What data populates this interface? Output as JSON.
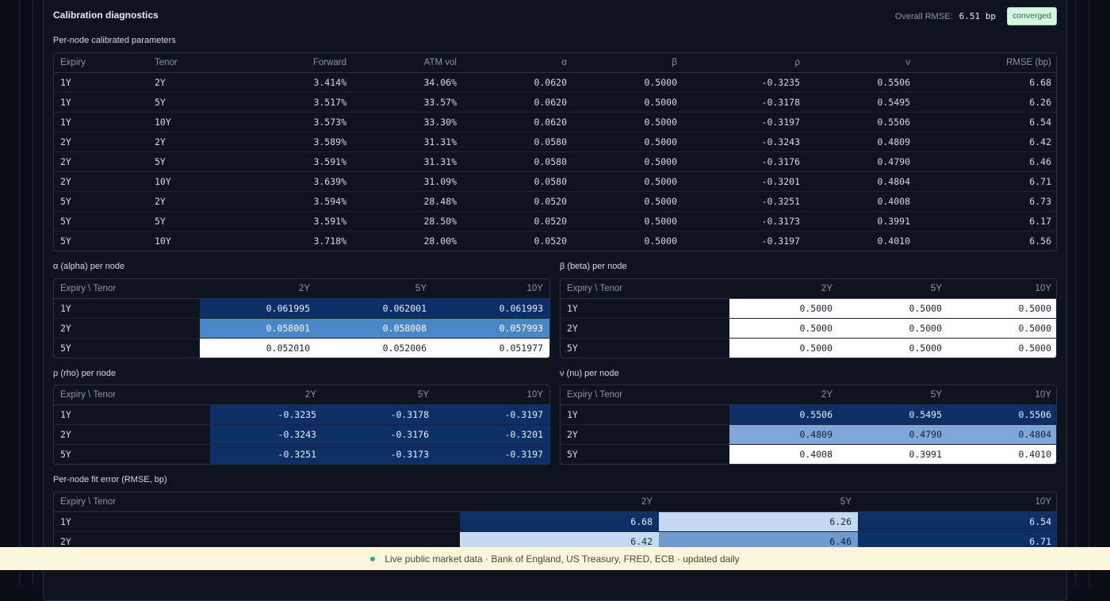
{
  "card": {
    "title": "Calibration diagnostics",
    "overall_rmse_label": "Overall RMSE:",
    "overall_rmse_value": "6.51 bp",
    "status_badge": "converged"
  },
  "params_table": {
    "label": "Per-node calibrated parameters",
    "headers": [
      "Expiry",
      "Tenor",
      "Forward",
      "ATM vol",
      "α",
      "β",
      "ρ",
      "ν",
      "RMSE (bp)"
    ],
    "rows": [
      [
        "1Y",
        "2Y",
        "3.414%",
        "34.06%",
        "0.0620",
        "0.5000",
        "-0.3235",
        "0.5506",
        "6.68"
      ],
      [
        "1Y",
        "5Y",
        "3.517%",
        "33.57%",
        "0.0620",
        "0.5000",
        "-0.3178",
        "0.5495",
        "6.26"
      ],
      [
        "1Y",
        "10Y",
        "3.573%",
        "33.30%",
        "0.0620",
        "0.5000",
        "-0.3197",
        "0.5506",
        "6.54"
      ],
      [
        "2Y",
        "2Y",
        "3.589%",
        "31.31%",
        "0.0580",
        "0.5000",
        "-0.3243",
        "0.4809",
        "6.42"
      ],
      [
        "2Y",
        "5Y",
        "3.591%",
        "31.31%",
        "0.0580",
        "0.5000",
        "-0.3176",
        "0.4790",
        "6.46"
      ],
      [
        "2Y",
        "10Y",
        "3.639%",
        "31.09%",
        "0.0580",
        "0.5000",
        "-0.3201",
        "0.4804",
        "6.71"
      ],
      [
        "5Y",
        "2Y",
        "3.594%",
        "28.48%",
        "0.0520",
        "0.5000",
        "-0.3251",
        "0.4008",
        "6.73"
      ],
      [
        "5Y",
        "5Y",
        "3.591%",
        "28.50%",
        "0.0520",
        "0.5000",
        "-0.3173",
        "0.3991",
        "6.17"
      ],
      [
        "5Y",
        "10Y",
        "3.718%",
        "28.00%",
        "0.0520",
        "0.5000",
        "-0.3197",
        "0.4010",
        "6.56"
      ]
    ]
  },
  "alpha_grid": {
    "label": "α (alpha) per node",
    "corner": "Expiry \\ Tenor",
    "cols": [
      "2Y",
      "5Y",
      "10Y"
    ],
    "rows": [
      {
        "expiry": "1Y",
        "values": [
          "0.061995",
          "0.062001",
          "0.061993"
        ]
      },
      {
        "expiry": "2Y",
        "values": [
          "0.058001",
          "0.058008",
          "0.057993"
        ]
      },
      {
        "expiry": "5Y",
        "values": [
          "0.052010",
          "0.052006",
          "0.051977"
        ]
      }
    ]
  },
  "beta_grid": {
    "label": "β (beta) per node",
    "corner": "Expiry \\ Tenor",
    "cols": [
      "2Y",
      "5Y",
      "10Y"
    ],
    "rows": [
      {
        "expiry": "1Y",
        "values": [
          "0.5000",
          "0.5000",
          "0.5000"
        ]
      },
      {
        "expiry": "2Y",
        "values": [
          "0.5000",
          "0.5000",
          "0.5000"
        ]
      },
      {
        "expiry": "5Y",
        "values": [
          "0.5000",
          "0.5000",
          "0.5000"
        ]
      }
    ]
  },
  "rho_grid": {
    "label": "ρ (rho) per node",
    "corner": "Expiry \\ Tenor",
    "cols": [
      "2Y",
      "5Y",
      "10Y"
    ],
    "rows": [
      {
        "expiry": "1Y",
        "values": [
          "-0.3235",
          "-0.3178",
          "-0.3197"
        ]
      },
      {
        "expiry": "2Y",
        "values": [
          "-0.3243",
          "-0.3176",
          "-0.3201"
        ]
      },
      {
        "expiry": "5Y",
        "values": [
          "-0.3251",
          "-0.3173",
          "-0.3197"
        ]
      }
    ]
  },
  "nu_grid": {
    "label": "ν (nu) per node",
    "corner": "Expiry \\ Tenor",
    "cols": [
      "2Y",
      "5Y",
      "10Y"
    ],
    "rows": [
      {
        "expiry": "1Y",
        "values": [
          "0.5506",
          "0.5495",
          "0.5506"
        ]
      },
      {
        "expiry": "2Y",
        "values": [
          "0.4809",
          "0.4790",
          "0.4804"
        ]
      },
      {
        "expiry": "5Y",
        "values": [
          "0.4008",
          "0.3991",
          "0.4010"
        ]
      }
    ]
  },
  "rmse_grid": {
    "label": "Per-node fit error (RMSE, bp)",
    "corner": "Expiry \\ Tenor",
    "cols": [
      "2Y",
      "5Y",
      "10Y"
    ],
    "rows": [
      {
        "expiry": "1Y",
        "values": [
          "6.68",
          "6.26",
          "6.54"
        ]
      },
      {
        "expiry": "2Y",
        "values": [
          "6.42",
          "6.46",
          "6.71"
        ]
      }
    ]
  },
  "footer": {
    "text": "Live public market data · Bank of England, US Treasury, FRED, ECB · updated daily"
  },
  "colors": {
    "heat_dark": "#0b2f66",
    "heat_mid": "#4a86c8",
    "heat_light": "#ffffff",
    "badge_bg": "#d9f6e4",
    "badge_text": "#1a7a44"
  }
}
